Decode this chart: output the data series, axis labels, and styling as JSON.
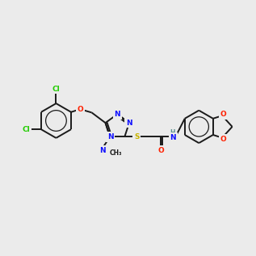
{
  "bg": "#ebebeb",
  "bond_color": "#1a1a1a",
  "lw": 1.4,
  "fs": 6.5,
  "colors": {
    "N": "#1010ff",
    "O": "#ff2000",
    "S": "#c8b400",
    "Cl": "#22cc00",
    "H": "#5a9090",
    "C": "#1a1a1a"
  }
}
